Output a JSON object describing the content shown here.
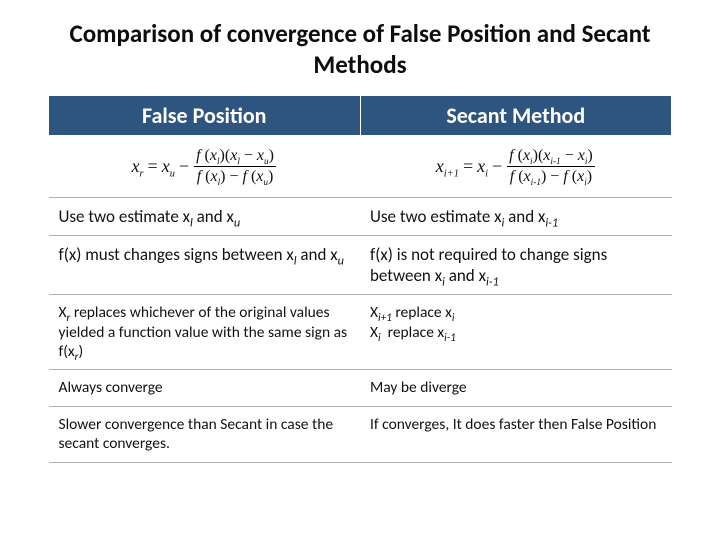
{
  "title": "Comparison of convergence of False Position and Secant Methods",
  "table": {
    "header": {
      "col1": "False Position",
      "col2": "Secant Method"
    },
    "formula": {
      "fp": {
        "lhs_var": "x",
        "lhs_sub": "r",
        "rhs1_var": "x",
        "rhs1_sub": "u",
        "num_f1_arg": "x",
        "num_f1_sub": "l",
        "num_diff_a": "x",
        "num_diff_a_sub": "l",
        "num_diff_b": "x",
        "num_diff_b_sub": "u",
        "den_f1_arg": "x",
        "den_f1_sub": "l",
        "den_f2_arg": "x",
        "den_f2_sub": "u"
      },
      "sm": {
        "lhs_var": "x",
        "lhs_sub": "i+1",
        "rhs1_var": "x",
        "rhs1_sub": "i",
        "num_f1_arg": "x",
        "num_f1_sub": "i",
        "num_diff_a": "x",
        "num_diff_a_sub": "i-1",
        "num_diff_b": "x",
        "num_diff_b_sub": "i",
        "den_f1_arg": "x",
        "den_f1_sub": "i-1",
        "den_f2_arg": "x",
        "den_f2_sub": "i"
      }
    },
    "rows": [
      {
        "fp": "Use two estimate x<span class='sub'>l</span> and x<span class='sub'>u</span>",
        "sm": "Use two estimate x<span class='sub'>i</span> and x<span class='sub'>i-1</span>",
        "size": "normal"
      },
      {
        "fp": "f(x) must changes signs between x<span class='sub'>l</span> and x<span class='sub'>u</span>",
        "sm": "f(x) is not required to change signs between x<span class='sub'>i</span> and x<span class='sub'>i-1</span>",
        "size": "normal"
      },
      {
        "fp": "X<span class='sub'>r</span> replaces whichever of the original values yielded a function value with the same sign as f(x<span class='sub'>r</span>)",
        "sm": "X<span class='sub'>i+1</span> replace x<span class='sub'>i</span><br>X<span class='sub'>i</span>&nbsp; replace x<span class='sub'>i-1</span>",
        "size": "small"
      },
      {
        "fp": "Always converge",
        "sm": "May be diverge",
        "size": "small"
      },
      {
        "fp": "Slower convergence than Secant in case the secant converges.",
        "sm": "If converges, It does faster then False Position",
        "size": "small"
      }
    ]
  },
  "colors": {
    "header_bg": "#2e5480",
    "header_text": "#ffffff",
    "row_border": "#b0b0b0",
    "page_bg": "#ffffff",
    "title_color": "#0d0d0d"
  },
  "typography": {
    "title_fontsize": 25,
    "title_weight": 700,
    "header_fontsize": 22,
    "cell_fontsize_normal": 17,
    "cell_fontsize_small": 15.5,
    "formula_fontsize": 18,
    "font_family": "Calibri"
  }
}
